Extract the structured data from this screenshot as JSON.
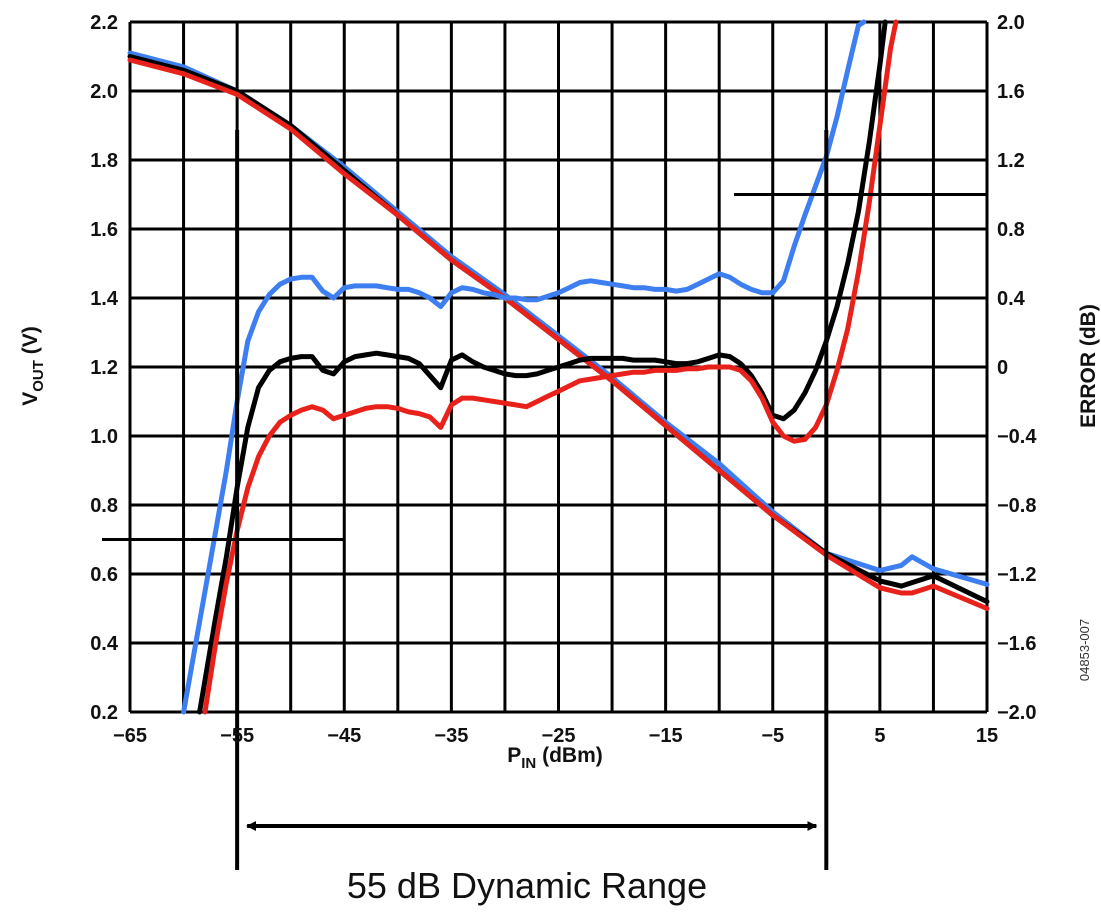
{
  "chart_data": {
    "type": "line",
    "x_axis": {
      "label_main": "P",
      "label_sub": "IN",
      "label_rest": " (dBm)",
      "range": [
        -65,
        15
      ],
      "ticks": [
        "−65",
        "−55",
        "−45",
        "−35",
        "−25",
        "−15",
        "−5",
        "5",
        "15"
      ],
      "tick_values": [
        -65,
        -55,
        -45,
        -35,
        -25,
        -15,
        -5,
        5,
        15
      ]
    },
    "y_left_axis": {
      "label_main": "V",
      "label_sub": "OUT",
      "label_rest": " (V)",
      "range": [
        0.2,
        2.2
      ],
      "ticks": [
        "0.2",
        "0.4",
        "0.6",
        "0.8",
        "1.0",
        "1.2",
        "1.4",
        "1.6",
        "1.8",
        "2.0",
        "2.2"
      ],
      "tick_values": [
        0.2,
        0.4,
        0.6,
        0.8,
        1.0,
        1.2,
        1.4,
        1.6,
        1.8,
        2.0,
        2.2
      ]
    },
    "y_right_axis": {
      "label": "ERROR (dB)",
      "range": [
        -2.0,
        2.0
      ],
      "ticks": [
        "−2.0",
        "−1.6",
        "−1.2",
        "−0.8",
        "−0.4",
        "0",
        "0.4",
        "0.8",
        "1.2",
        "1.6",
        "2.0"
      ],
      "tick_values": [
        -2.0,
        -1.6,
        -1.2,
        -0.8,
        -0.4,
        0,
        0.4,
        0.8,
        1.2,
        1.6,
        2.0
      ]
    },
    "grid": true,
    "series": [
      {
        "axis": "left",
        "color": "#3d7ff0",
        "x": [
          -65,
          -60,
          -55,
          -50,
          -45,
          -40,
          -35,
          -30,
          -25,
          -20,
          -15,
          -10,
          -5,
          0,
          5,
          7,
          8,
          10,
          15
        ],
        "y": [
          2.11,
          2.07,
          2.0,
          1.9,
          1.78,
          1.65,
          1.52,
          1.41,
          1.29,
          1.17,
          1.04,
          0.92,
          0.78,
          0.66,
          0.61,
          0.625,
          0.65,
          0.615,
          0.57
        ]
      },
      {
        "axis": "left",
        "color": "#000000",
        "x": [
          -65,
          -60,
          -55,
          -50,
          -45,
          -40,
          -35,
          -30,
          -25,
          -20,
          -15,
          -10,
          -5,
          0,
          5,
          7,
          8,
          10,
          15
        ],
        "y": [
          2.1,
          2.06,
          2.0,
          1.9,
          1.77,
          1.64,
          1.51,
          1.4,
          1.28,
          1.16,
          1.03,
          0.9,
          0.77,
          0.66,
          0.58,
          0.565,
          0.575,
          0.595,
          0.52
        ]
      },
      {
        "axis": "left",
        "color": "#e8221b",
        "x": [
          -65,
          -60,
          -55,
          -50,
          -45,
          -40,
          -35,
          -30,
          -25,
          -20,
          -15,
          -10,
          -5,
          0,
          5,
          7,
          8,
          10,
          15
        ],
        "y": [
          2.09,
          2.05,
          1.99,
          1.89,
          1.76,
          1.64,
          1.51,
          1.4,
          1.28,
          1.16,
          1.03,
          0.9,
          0.77,
          0.655,
          0.56,
          0.545,
          0.545,
          0.565,
          0.5
        ]
      },
      {
        "axis": "right",
        "color": "#3d7ff0",
        "x": [
          -60,
          -59,
          -58,
          -57,
          -56,
          -55,
          -54,
          -53,
          -52,
          -51,
          -50,
          -49,
          -48,
          -47,
          -46,
          -45,
          -44,
          -43,
          -42,
          -41,
          -40,
          -39,
          -38,
          -37,
          -36,
          -35,
          -34,
          -33,
          -32,
          -31,
          -30,
          -29,
          -28,
          -27,
          -26,
          -25,
          -24,
          -23,
          -22,
          -21,
          -20,
          -19,
          -18,
          -17,
          -16,
          -15,
          -14,
          -13,
          -12,
          -11,
          -10,
          -9,
          -8,
          -7,
          -6,
          -5,
          -4,
          -3,
          -2,
          -1,
          0,
          1,
          2,
          3,
          3.5
        ],
        "y": [
          -2.0,
          -1.65,
          -1.3,
          -0.95,
          -0.6,
          -0.2,
          0.15,
          0.32,
          0.42,
          0.48,
          0.51,
          0.52,
          0.52,
          0.44,
          0.4,
          0.46,
          0.47,
          0.47,
          0.47,
          0.46,
          0.45,
          0.45,
          0.43,
          0.4,
          0.35,
          0.43,
          0.46,
          0.45,
          0.43,
          0.42,
          0.4,
          0.4,
          0.39,
          0.39,
          0.41,
          0.43,
          0.46,
          0.49,
          0.5,
          0.49,
          0.48,
          0.47,
          0.46,
          0.46,
          0.45,
          0.45,
          0.44,
          0.45,
          0.48,
          0.51,
          0.54,
          0.52,
          0.48,
          0.45,
          0.43,
          0.43,
          0.5,
          0.7,
          0.88,
          1.05,
          1.22,
          1.45,
          1.72,
          1.98,
          2.0
        ]
      },
      {
        "axis": "right",
        "color": "#000000",
        "x": [
          -58.5,
          -57,
          -56,
          -55,
          -54,
          -53,
          -52,
          -51,
          -50,
          -49,
          -48,
          -47,
          -46,
          -45,
          -44,
          -43,
          -42,
          -41,
          -40,
          -39,
          -38,
          -37,
          -36,
          -35,
          -34,
          -33,
          -32,
          -31,
          -30,
          -29,
          -28,
          -27,
          -26,
          -25,
          -24,
          -23,
          -22,
          -21,
          -20,
          -19,
          -18,
          -17,
          -16,
          -15,
          -14,
          -13,
          -12,
          -11,
          -10,
          -9,
          -8,
          -7,
          -6,
          -5,
          -4,
          -3,
          -2,
          -1,
          0,
          1,
          2,
          3,
          4,
          5,
          5.5
        ],
        "y": [
          -2.0,
          -1.45,
          -1.1,
          -0.7,
          -0.35,
          -0.12,
          -0.02,
          0.03,
          0.05,
          0.06,
          0.06,
          -0.02,
          -0.04,
          0.03,
          0.06,
          0.07,
          0.08,
          0.07,
          0.06,
          0.05,
          0.02,
          -0.05,
          -0.12,
          0.04,
          0.07,
          0.03,
          0.0,
          -0.02,
          -0.04,
          -0.05,
          -0.05,
          -0.04,
          -0.02,
          0.0,
          0.02,
          0.04,
          0.05,
          0.05,
          0.05,
          0.05,
          0.04,
          0.04,
          0.04,
          0.03,
          0.02,
          0.02,
          0.03,
          0.05,
          0.07,
          0.06,
          0.02,
          -0.05,
          -0.15,
          -0.28,
          -0.3,
          -0.25,
          -0.15,
          -0.02,
          0.15,
          0.35,
          0.6,
          0.9,
          1.3,
          1.75,
          2.0
        ]
      },
      {
        "axis": "right",
        "color": "#e8221b",
        "x": [
          -58,
          -57,
          -56,
          -55,
          -54,
          -53,
          -52,
          -51,
          -50,
          -49,
          -48,
          -47,
          -46,
          -45,
          -44,
          -43,
          -42,
          -41,
          -40,
          -39,
          -38,
          -37,
          -36,
          -35,
          -34,
          -33,
          -32,
          -31,
          -30,
          -29,
          -28,
          -27,
          -26,
          -25,
          -24,
          -23,
          -22,
          -21,
          -20,
          -19,
          -18,
          -17,
          -16,
          -15,
          -14,
          -13,
          -12,
          -11,
          -10,
          -9,
          -8,
          -7,
          -6,
          -5,
          -4,
          -3,
          -2,
          -1,
          0,
          1,
          2,
          3,
          4,
          5,
          6,
          6.5
        ],
        "y": [
          -2.0,
          -1.6,
          -1.25,
          -0.95,
          -0.7,
          -0.52,
          -0.4,
          -0.32,
          -0.28,
          -0.25,
          -0.23,
          -0.25,
          -0.3,
          -0.28,
          -0.26,
          -0.24,
          -0.23,
          -0.23,
          -0.24,
          -0.26,
          -0.27,
          -0.29,
          -0.35,
          -0.22,
          -0.18,
          -0.18,
          -0.19,
          -0.2,
          -0.21,
          -0.22,
          -0.23,
          -0.2,
          -0.17,
          -0.14,
          -0.11,
          -0.08,
          -0.07,
          -0.06,
          -0.05,
          -0.04,
          -0.03,
          -0.03,
          -0.02,
          -0.02,
          -0.02,
          -0.01,
          -0.01,
          0.0,
          0.0,
          0.0,
          -0.02,
          -0.08,
          -0.18,
          -0.32,
          -0.4,
          -0.43,
          -0.42,
          -0.35,
          -0.22,
          -0.02,
          0.22,
          0.55,
          0.95,
          1.4,
          1.85,
          2.0
        ]
      }
    ],
    "annotations": {
      "markers": [
        {
          "type": "hline",
          "axis": "right",
          "y": -1.0,
          "x_from": -65,
          "x_to": -45
        },
        {
          "type": "hline",
          "axis": "right",
          "y": 1.0,
          "x_from": -6,
          "x_to": 15
        },
        {
          "type": "vline",
          "x": -55
        },
        {
          "type": "vline",
          "x": 0
        }
      ],
      "range_span": {
        "from": -55,
        "to": 0
      },
      "caption": "55 dB Dynamic Range",
      "figure_id": "04853-007"
    }
  }
}
